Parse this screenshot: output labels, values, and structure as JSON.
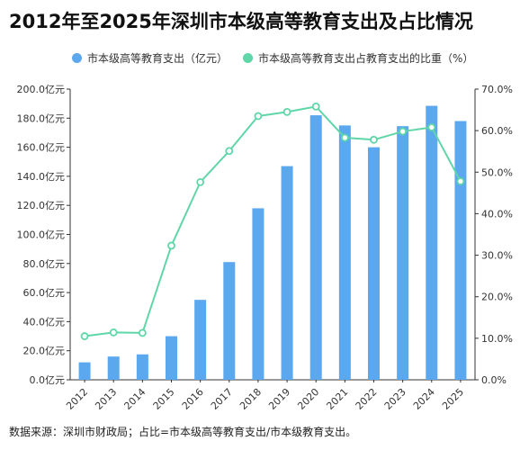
{
  "title": "2012年至2025年深圳市本级高等教育支出及占比情况",
  "source": "数据来源：深圳市财政局；占比=市本级高等教育支出/市本级教育支出。",
  "colors": {
    "bar": "#5BA8EE",
    "line": "#5FD6A8",
    "axis": "#333333",
    "grid": "#e6e6e6"
  },
  "chart_data": {
    "type": "bar",
    "categories": [
      "2012",
      "2013",
      "2014",
      "2015",
      "2016",
      "2017",
      "2018",
      "2019",
      "2020",
      "2021",
      "2022",
      "2023",
      "2024",
      "2025"
    ],
    "series": [
      {
        "name": "市本级高等教育支出（亿元）",
        "type": "bar",
        "axis": "left",
        "values": [
          12.0,
          16.0,
          17.5,
          30.0,
          55.0,
          81.0,
          118.0,
          147.0,
          182.0,
          175.0,
          160.0,
          174.5,
          188.5,
          178.0
        ]
      },
      {
        "name": "市本级高等教育支出占教育支出的比重（%）",
        "type": "line",
        "axis": "right",
        "values": [
          10.5,
          11.4,
          11.3,
          32.3,
          47.6,
          55.1,
          63.5,
          64.5,
          65.8,
          58.3,
          57.8,
          59.8,
          60.8,
          47.8
        ]
      }
    ],
    "left_axis": {
      "ylim": [
        0,
        200
      ],
      "ticks": [
        "0.0亿元",
        "20.0亿元",
        "40.0亿元",
        "60.0亿元",
        "80.0亿元",
        "100.0亿元",
        "120.0亿元",
        "140.0亿元",
        "160.0亿元",
        "180.0亿元",
        "200.0亿元"
      ]
    },
    "right_axis": {
      "ylim": [
        0,
        70
      ],
      "ticks": [
        "0.0%",
        "10.0%",
        "20.0%",
        "30.0%",
        "40.0%",
        "50.0%",
        "60.0%",
        "70.0%"
      ]
    },
    "legend_position": "top-center",
    "grid": false
  }
}
